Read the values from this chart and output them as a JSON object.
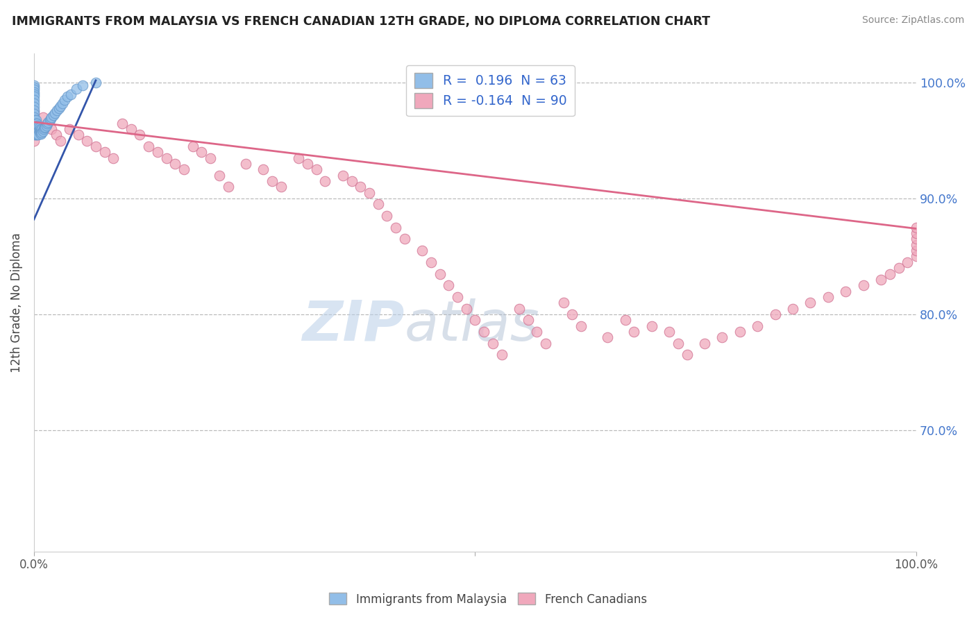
{
  "title": "IMMIGRANTS FROM MALAYSIA VS FRENCH CANADIAN 12TH GRADE, NO DIPLOMA CORRELATION CHART",
  "source": "Source: ZipAtlas.com",
  "ylabel": "12th Grade, No Diploma",
  "watermark_zip": "ZIP",
  "watermark_atlas": "atlas",
  "x_min": 0.0,
  "x_max": 1.0,
  "y_min": 0.595,
  "y_max": 1.025,
  "y_ticks": [
    0.7,
    0.8,
    0.9,
    1.0
  ],
  "y_tick_labels": [
    "70.0%",
    "80.0%",
    "90.0%",
    "100.0%"
  ],
  "blue_R": 0.196,
  "blue_N": 63,
  "pink_R": -0.164,
  "pink_N": 90,
  "blue_color": "#92BEE8",
  "blue_edge_color": "#6699CC",
  "pink_color": "#F0A8BC",
  "pink_edge_color": "#D07090",
  "blue_line_color": "#3355AA",
  "pink_line_color": "#DD6688",
  "legend_label_blue": "Immigrants from Malaysia",
  "legend_label_pink": "French Canadians",
  "blue_scatter_x": [
    0.0,
    0.0,
    0.0,
    0.0,
    0.0,
    0.0,
    0.0,
    0.0,
    0.0,
    0.0,
    0.0,
    0.0,
    0.001,
    0.001,
    0.001,
    0.001,
    0.001,
    0.001,
    0.002,
    0.002,
    0.002,
    0.002,
    0.002,
    0.003,
    0.003,
    0.003,
    0.003,
    0.004,
    0.004,
    0.004,
    0.005,
    0.005,
    0.005,
    0.006,
    0.006,
    0.007,
    0.007,
    0.008,
    0.008,
    0.009,
    0.009,
    0.01,
    0.011,
    0.012,
    0.013,
    0.014,
    0.015,
    0.016,
    0.018,
    0.019,
    0.02,
    0.022,
    0.024,
    0.026,
    0.028,
    0.03,
    0.032,
    0.035,
    0.038,
    0.042,
    0.048,
    0.055,
    0.07
  ],
  "blue_scatter_y": [
    0.998,
    0.996,
    0.994,
    0.992,
    0.99,
    0.988,
    0.985,
    0.982,
    0.979,
    0.976,
    0.973,
    0.97,
    0.968,
    0.965,
    0.962,
    0.96,
    0.958,
    0.955,
    0.968,
    0.965,
    0.962,
    0.958,
    0.955,
    0.965,
    0.962,
    0.958,
    0.955,
    0.963,
    0.96,
    0.956,
    0.962,
    0.958,
    0.955,
    0.961,
    0.958,
    0.96,
    0.957,
    0.959,
    0.956,
    0.96,
    0.957,
    0.958,
    0.96,
    0.961,
    0.962,
    0.963,
    0.965,
    0.966,
    0.968,
    0.969,
    0.97,
    0.972,
    0.974,
    0.976,
    0.978,
    0.98,
    0.982,
    0.985,
    0.988,
    0.99,
    0.995,
    0.998,
    1.0
  ],
  "pink_scatter_x": [
    0.0,
    0.0,
    0.0,
    0.0,
    0.0,
    0.0,
    0.01,
    0.015,
    0.02,
    0.025,
    0.03,
    0.04,
    0.05,
    0.06,
    0.07,
    0.08,
    0.09,
    0.1,
    0.11,
    0.12,
    0.13,
    0.14,
    0.15,
    0.16,
    0.17,
    0.18,
    0.19,
    0.2,
    0.21,
    0.22,
    0.24,
    0.26,
    0.27,
    0.28,
    0.3,
    0.31,
    0.32,
    0.33,
    0.35,
    0.36,
    0.37,
    0.38,
    0.39,
    0.4,
    0.41,
    0.42,
    0.44,
    0.45,
    0.46,
    0.47,
    0.48,
    0.49,
    0.5,
    0.51,
    0.52,
    0.53,
    0.55,
    0.56,
    0.57,
    0.58,
    0.6,
    0.61,
    0.62,
    0.65,
    0.67,
    0.68,
    0.7,
    0.72,
    0.73,
    0.74,
    0.76,
    0.78,
    0.8,
    0.82,
    0.84,
    0.86,
    0.88,
    0.9,
    0.92,
    0.94,
    0.96,
    0.97,
    0.98,
    0.99,
    1.0,
    1.0,
    1.0,
    1.0,
    1.0,
    1.0
  ],
  "pink_scatter_y": [
    0.975,
    0.97,
    0.965,
    0.96,
    0.955,
    0.95,
    0.97,
    0.965,
    0.96,
    0.955,
    0.95,
    0.96,
    0.955,
    0.95,
    0.945,
    0.94,
    0.935,
    0.965,
    0.96,
    0.955,
    0.945,
    0.94,
    0.935,
    0.93,
    0.925,
    0.945,
    0.94,
    0.935,
    0.92,
    0.91,
    0.93,
    0.925,
    0.915,
    0.91,
    0.935,
    0.93,
    0.925,
    0.915,
    0.92,
    0.915,
    0.91,
    0.905,
    0.895,
    0.885,
    0.875,
    0.865,
    0.855,
    0.845,
    0.835,
    0.825,
    0.815,
    0.805,
    0.795,
    0.785,
    0.775,
    0.765,
    0.805,
    0.795,
    0.785,
    0.775,
    0.81,
    0.8,
    0.79,
    0.78,
    0.795,
    0.785,
    0.79,
    0.785,
    0.775,
    0.765,
    0.775,
    0.78,
    0.785,
    0.79,
    0.8,
    0.805,
    0.81,
    0.815,
    0.82,
    0.825,
    0.83,
    0.835,
    0.84,
    0.845,
    0.85,
    0.855,
    0.86,
    0.865,
    0.87,
    0.875
  ],
  "pink_line_x0": 0.0,
  "pink_line_y0": 0.966,
  "pink_line_x1": 1.0,
  "pink_line_y1": 0.874,
  "blue_line_x0": 0.0,
  "blue_line_y0": 0.882,
  "blue_line_x1": 0.07,
  "blue_line_y1": 1.002
}
